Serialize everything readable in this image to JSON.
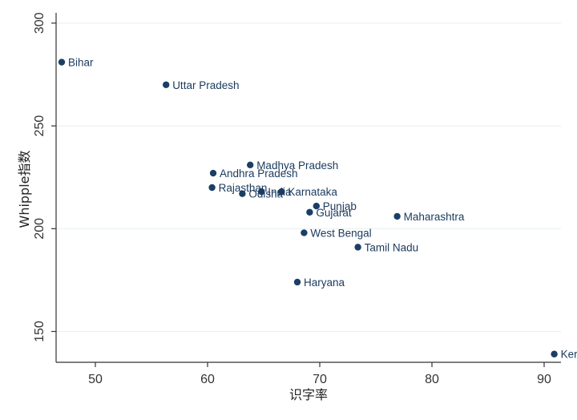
{
  "chart_data": {
    "type": "scatter",
    "title": "",
    "xlabel": "识字率",
    "ylabel": "Whipple指数",
    "xlim": [
      46.5,
      91.5
    ],
    "ylim": [
      135,
      305
    ],
    "xticks": [
      50,
      60,
      70,
      80,
      90
    ],
    "yticks": [
      150,
      200,
      250,
      300
    ],
    "grid": true,
    "marker_color": "#1a3f66",
    "label_color": "#1a3a5c",
    "points": [
      {
        "label": "Bihar",
        "x": 47.0,
        "y": 281
      },
      {
        "label": "Uttar Pradesh",
        "x": 56.3,
        "y": 270
      },
      {
        "label": "Madhya Pradesh",
        "x": 63.8,
        "y": 231
      },
      {
        "label": "Andhra Pradesh",
        "x": 60.5,
        "y": 227
      },
      {
        "label": "Rajasthan",
        "x": 60.4,
        "y": 220
      },
      {
        "label": "Odisha",
        "x": 63.1,
        "y": 217
      },
      {
        "label": "India",
        "x": 64.8,
        "y": 218
      },
      {
        "label": "Karnataka",
        "x": 66.6,
        "y": 218
      },
      {
        "label": "Punjab",
        "x": 69.7,
        "y": 211
      },
      {
        "label": "Gujarat",
        "x": 69.1,
        "y": 208
      },
      {
        "label": "Maharashtra",
        "x": 76.9,
        "y": 206
      },
      {
        "label": "West Bengal",
        "x": 68.6,
        "y": 198
      },
      {
        "label": "Tamil Nadu",
        "x": 73.4,
        "y": 191
      },
      {
        "label": "Haryana",
        "x": 68.0,
        "y": 174
      },
      {
        "label": "Kerala",
        "x": 90.9,
        "y": 139
      }
    ]
  }
}
